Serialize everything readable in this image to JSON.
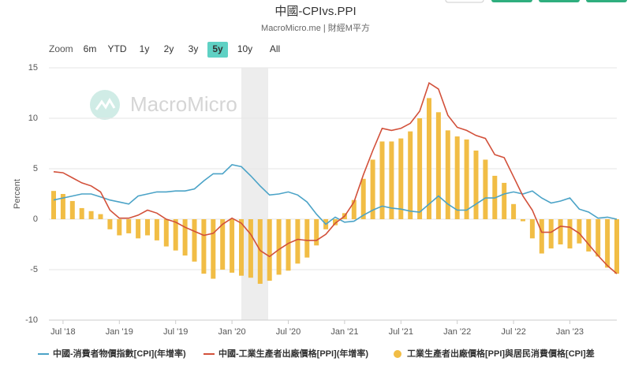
{
  "chart_data": {
    "type": "combo",
    "title": "中國-CPIvs.PPI",
    "subtitle": "MacroMicro.me | 財經M平方",
    "watermark": "MacroMicro",
    "ylabel": "Percent",
    "zoom": {
      "label": "Zoom",
      "options": [
        "6m",
        "YTD",
        "1y",
        "2y",
        "3y",
        "5y",
        "10y",
        "All"
      ],
      "selected": 5
    },
    "categories": [
      "2018-06",
      "2018-07",
      "2018-08",
      "2018-09",
      "2018-10",
      "2018-11",
      "2018-12",
      "2019-01",
      "2019-02",
      "2019-03",
      "2019-04",
      "2019-05",
      "2019-06",
      "2019-07",
      "2019-08",
      "2019-09",
      "2019-10",
      "2019-11",
      "2019-12",
      "2020-01",
      "2020-02",
      "2020-03",
      "2020-04",
      "2020-05",
      "2020-06",
      "2020-07",
      "2020-08",
      "2020-09",
      "2020-10",
      "2020-11",
      "2020-12",
      "2021-01",
      "2021-02",
      "2021-03",
      "2021-04",
      "2021-05",
      "2021-06",
      "2021-07",
      "2021-08",
      "2021-09",
      "2021-10",
      "2021-11",
      "2021-12",
      "2022-01",
      "2022-02",
      "2022-03",
      "2022-04",
      "2022-05",
      "2022-06",
      "2022-07",
      "2022-08",
      "2022-09",
      "2022-10",
      "2022-11",
      "2022-12",
      "2023-01",
      "2023-02",
      "2023-03",
      "2023-04",
      "2023-05",
      "2023-06"
    ],
    "xticks": [
      {
        "value": "2018-07",
        "label": "Jul '18"
      },
      {
        "value": "2019-01",
        "label": "Jan '19"
      },
      {
        "value": "2019-07",
        "label": "Jul '19"
      },
      {
        "value": "2020-01",
        "label": "Jan '20"
      },
      {
        "value": "2020-07",
        "label": "Jul '20"
      },
      {
        "value": "2021-01",
        "label": "Jan '21"
      },
      {
        "value": "2021-07",
        "label": "Jul '21"
      },
      {
        "value": "2022-01",
        "label": "Jan '22"
      },
      {
        "value": "2022-07",
        "label": "Jul '22"
      },
      {
        "value": "2023-01",
        "label": "Jan '23"
      }
    ],
    "ylim": [
      -10,
      15
    ],
    "yticks": [
      -10,
      -5,
      0,
      5,
      10,
      15
    ],
    "grid": true,
    "series": [
      {
        "name": "中國-消費者物價指數[CPI](年增率)",
        "type": "line",
        "color": "#4ba3c7",
        "values": [
          1.9,
          2.1,
          2.3,
          2.5,
          2.5,
          2.2,
          1.9,
          1.7,
          1.5,
          2.3,
          2.5,
          2.7,
          2.7,
          2.8,
          2.8,
          3.0,
          3.8,
          4.5,
          4.5,
          5.4,
          5.2,
          4.3,
          3.3,
          2.4,
          2.5,
          2.7,
          2.4,
          1.7,
          0.5,
          -0.5,
          0.2,
          -0.3,
          -0.2,
          0.4,
          0.9,
          1.3,
          1.1,
          1.0,
          0.8,
          0.7,
          1.5,
          2.3,
          1.5,
          0.9,
          0.9,
          1.5,
          2.1,
          2.1,
          2.5,
          2.7,
          2.5,
          2.8,
          2.1,
          1.6,
          1.8,
          2.1,
          1.0,
          0.7,
          0.1,
          0.2,
          0.0
        ]
      },
      {
        "name": "中國-工業生產者出廠價格[PPI](年增率)",
        "type": "line",
        "color": "#d2503a",
        "values": [
          4.7,
          4.6,
          4.1,
          3.6,
          3.3,
          2.7,
          0.9,
          0.1,
          0.1,
          0.4,
          0.9,
          0.6,
          0.0,
          -0.3,
          -0.8,
          -1.2,
          -1.6,
          -1.4,
          -0.5,
          0.1,
          -0.4,
          -1.5,
          -3.1,
          -3.7,
          -3.0,
          -2.4,
          -2.0,
          -2.1,
          -2.1,
          -1.5,
          -0.4,
          0.3,
          1.7,
          4.4,
          6.8,
          9.0,
          8.8,
          9.0,
          9.5,
          10.7,
          13.5,
          12.9,
          10.3,
          9.1,
          8.8,
          8.3,
          8.0,
          6.4,
          6.1,
          4.2,
          2.3,
          0.9,
          -1.3,
          -1.3,
          -0.7,
          -0.8,
          -1.4,
          -2.5,
          -3.6,
          -4.6,
          -5.4
        ]
      },
      {
        "name": "工業生產者出廠價格[PPI]與居民消費價格[CPI]差",
        "type": "bar",
        "color": "#f1bd45",
        "values": [
          2.8,
          2.5,
          1.8,
          1.1,
          0.8,
          0.5,
          -1.0,
          -1.6,
          -1.4,
          -1.9,
          -1.6,
          -2.1,
          -2.7,
          -3.1,
          -3.6,
          -4.2,
          -5.4,
          -5.9,
          -5.0,
          -5.3,
          -5.6,
          -5.8,
          -6.4,
          -6.1,
          -5.5,
          -5.1,
          -4.4,
          -3.8,
          -2.6,
          -1.0,
          -0.6,
          0.6,
          1.9,
          4.0,
          5.9,
          7.7,
          7.7,
          8.0,
          8.7,
          10.0,
          12.0,
          10.6,
          8.8,
          8.2,
          7.9,
          6.8,
          5.9,
          4.3,
          3.6,
          1.5,
          -0.2,
          -1.9,
          -3.4,
          -2.9,
          -2.5,
          -2.9,
          -2.4,
          -3.2,
          -3.7,
          -4.8,
          -5.4
        ]
      }
    ]
  }
}
